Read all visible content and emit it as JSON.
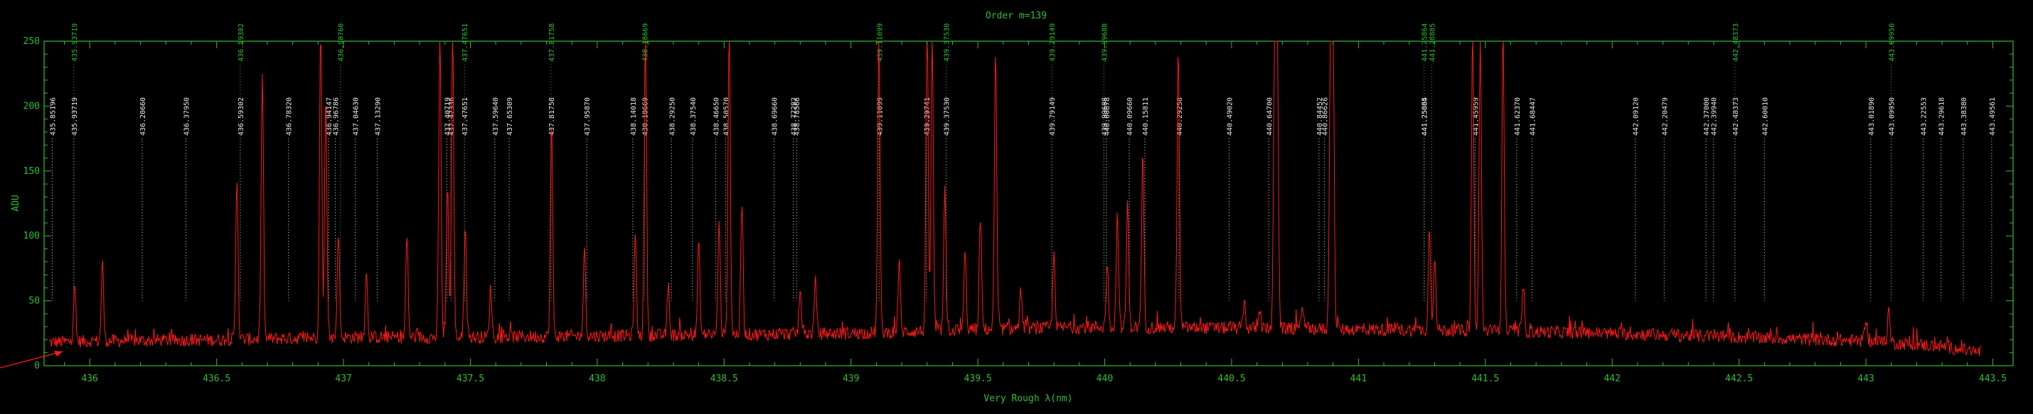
{
  "chart_data": {
    "type": "line",
    "title": "Order m=139",
    "xlabel": "Very Rough λ(nm)",
    "ylabel": "ADU",
    "xlim": [
      435.82,
      443.58
    ],
    "ylim": [
      0,
      250
    ],
    "x_ticks": [
      436,
      436.5,
      437,
      437.5,
      438,
      438.5,
      439,
      439.5,
      440,
      440.5,
      441,
      441.5,
      442,
      442.5,
      443,
      443.5
    ],
    "x_tick_labels": [
      "436",
      "436.5",
      "437",
      "437.5",
      "438",
      "438.5",
      "439",
      "439.5",
      "440",
      "440.5",
      "441",
      "441.5",
      "442",
      "442.5",
      "443",
      "443.5"
    ],
    "y_ticks": [
      0,
      50,
      100,
      150,
      200,
      250
    ],
    "y_tick_labels": [
      "0",
      "50",
      "100",
      "150",
      "200",
      "250"
    ],
    "grid": false,
    "frame_color": "#2fbf2f",
    "spectrum_color": "#ff1a1a",
    "text_color": "#2fbf2f",
    "white_label_color": "#e8e8e8",
    "baseline": {
      "x": [
        435.82,
        436.0,
        436.5,
        437.0,
        437.5,
        438.0,
        438.5,
        439.0,
        439.5,
        440.0,
        440.5,
        441.0,
        441.5,
        442.0,
        442.5,
        443.0,
        443.3,
        443.45
      ],
      "y": [
        18,
        19,
        20,
        22,
        22,
        23,
        24,
        25,
        28,
        30,
        29,
        28,
        27,
        25,
        22,
        19,
        15,
        10
      ]
    },
    "peaks": {
      "x": [
        435.94,
        436.05,
        436.58,
        436.68,
        436.91,
        436.93,
        436.98,
        437.09,
        437.25,
        437.38,
        437.41,
        437.43,
        437.48,
        437.58,
        437.82,
        437.95,
        438.15,
        438.19,
        438.28,
        438.4,
        438.48,
        438.52,
        438.57,
        438.8,
        438.86,
        439.11,
        439.19,
        439.3,
        439.32,
        439.37,
        439.45,
        439.51,
        439.57,
        439.67,
        439.8,
        440.01,
        440.05,
        440.09,
        440.15,
        440.29,
        440.55,
        440.61,
        440.67,
        440.68,
        440.78,
        440.89,
        440.9,
        441.28,
        441.3,
        441.45,
        441.48,
        441.57,
        441.65,
        443.0,
        443.09,
        443.46
      ],
      "y": [
        62,
        80,
        145,
        225,
        260,
        210,
        105,
        72,
        100,
        260,
        140,
        260,
        110,
        60,
        188,
        90,
        100,
        260,
        60,
        95,
        108,
        260,
        125,
        58,
        65,
        255,
        80,
        260,
        255,
        135,
        88,
        115,
        240,
        58,
        87,
        80,
        118,
        125,
        163,
        242,
        50,
        45,
        260,
        255,
        48,
        255,
        250,
        107,
        85,
        260,
        255,
        260,
        60,
        38,
        43,
        48
      ]
    },
    "line_markers": [
      {
        "x": 435.85196,
        "label": "435.85196",
        "color": "white",
        "top": 175,
        "bottom": 50
      },
      {
        "x": 435.93719,
        "label": "435.93719",
        "color": "white",
        "top": 175,
        "bottom": 50
      },
      {
        "x": 435.93719,
        "label": "435.93719",
        "color": "green",
        "top": 232,
        "bottom": 50
      },
      {
        "x": 436.2066,
        "label": "436.20660",
        "color": "white",
        "top": 175,
        "bottom": 50
      },
      {
        "x": 436.3795,
        "label": "436.37950",
        "color": "white",
        "top": 175,
        "bottom": 50
      },
      {
        "x": 436.59302,
        "label": "436.59302",
        "color": "white",
        "top": 175,
        "bottom": 50
      },
      {
        "x": 436.59302,
        "label": "436.59302",
        "color": "green",
        "top": 232,
        "bottom": 50
      },
      {
        "x": 436.7832,
        "label": "436.78320",
        "color": "white",
        "top": 175,
        "bottom": 50
      },
      {
        "x": 436.94147,
        "label": "436.94147",
        "color": "white",
        "top": 175,
        "bottom": 50
      },
      {
        "x": 436.96786,
        "label": "436.96786",
        "color": "white",
        "top": 175,
        "bottom": 50
      },
      {
        "x": 436.9876,
        "label": "436.98760",
        "color": "green",
        "top": 232,
        "bottom": 50
      },
      {
        "x": 437.0463,
        "label": "437.04630",
        "color": "white",
        "top": 175,
        "bottom": 50
      },
      {
        "x": 437.1329,
        "label": "437.13290",
        "color": "white",
        "top": 175,
        "bottom": 50
      },
      {
        "x": 437.40719,
        "label": "437.40719",
        "color": "white",
        "top": 175,
        "bottom": 50
      },
      {
        "x": 437.42336,
        "label": "437.42336",
        "color": "white",
        "top": 175,
        "bottom": 50
      },
      {
        "x": 437.47651,
        "label": "437.47651",
        "color": "white",
        "top": 175,
        "bottom": 50
      },
      {
        "x": 437.47651,
        "label": "437.47651",
        "color": "green",
        "top": 232,
        "bottom": 50
      },
      {
        "x": 437.5964,
        "label": "437.59640",
        "color": "white",
        "top": 175,
        "bottom": 50
      },
      {
        "x": 437.65309,
        "label": "437.65309",
        "color": "white",
        "top": 175,
        "bottom": 50
      },
      {
        "x": 437.81758,
        "label": "437.81758",
        "color": "white",
        "top": 175,
        "bottom": 50
      },
      {
        "x": 437.81758,
        "label": "437.81758",
        "color": "green",
        "top": 232,
        "bottom": 50
      },
      {
        "x": 437.9587,
        "label": "437.95870",
        "color": "white",
        "top": 175,
        "bottom": 50
      },
      {
        "x": 438.14018,
        "label": "438.14018",
        "color": "white",
        "top": 175,
        "bottom": 50
      },
      {
        "x": 438.18669,
        "label": "438.18669",
        "color": "white",
        "top": 175,
        "bottom": 50
      },
      {
        "x": 438.18669,
        "label": "438.18669",
        "color": "green",
        "top": 232,
        "bottom": 50
      },
      {
        "x": 438.2925,
        "label": "438.29250",
        "color": "white",
        "top": 175,
        "bottom": 50
      },
      {
        "x": 438.3754,
        "label": "438.37540",
        "color": "white",
        "top": 175,
        "bottom": 50
      },
      {
        "x": 438.4665,
        "label": "438.46650",
        "color": "white",
        "top": 175,
        "bottom": 50
      },
      {
        "x": 438.5057,
        "label": "438.50570",
        "color": "white",
        "top": 175,
        "bottom": 50
      },
      {
        "x": 438.6966,
        "label": "438.69660",
        "color": "white",
        "top": 175,
        "bottom": 50
      },
      {
        "x": 438.77282,
        "label": "438.77282",
        "color": "white",
        "top": 175,
        "bottom": 50
      },
      {
        "x": 438.78566,
        "label": "438.78566",
        "color": "white",
        "top": 175,
        "bottom": 50
      },
      {
        "x": 439.11099,
        "label": "439.11099",
        "color": "white",
        "top": 175,
        "bottom": 50
      },
      {
        "x": 439.11099,
        "label": "439.11099",
        "color": "green",
        "top": 232,
        "bottom": 50
      },
      {
        "x": 439.29741,
        "label": "439.29741",
        "color": "white",
        "top": 175,
        "bottom": 50
      },
      {
        "x": 439.3753,
        "label": "439.37530",
        "color": "white",
        "top": 175,
        "bottom": 50
      },
      {
        "x": 439.3753,
        "label": "439.37530",
        "color": "green",
        "top": 232,
        "bottom": 50
      },
      {
        "x": 439.79149,
        "label": "439.79149",
        "color": "white",
        "top": 175,
        "bottom": 50
      },
      {
        "x": 439.79149,
        "label": "439.79149",
        "color": "green",
        "top": 232,
        "bottom": 50
      },
      {
        "x": 439.99688,
        "label": "439.99688",
        "color": "white",
        "top": 175,
        "bottom": 50
      },
      {
        "x": 440.00678,
        "label": "440.00678",
        "color": "white",
        "top": 175,
        "bottom": 50
      },
      {
        "x": 439.99688,
        "label": "439.99688",
        "color": "green",
        "top": 232,
        "bottom": 50
      },
      {
        "x": 440.0966,
        "label": "440.09660",
        "color": "white",
        "top": 175,
        "bottom": 50
      },
      {
        "x": 440.15811,
        "label": "440.15811",
        "color": "white",
        "top": 175,
        "bottom": 50
      },
      {
        "x": 440.29258,
        "label": "440.29258",
        "color": "white",
        "top": 175,
        "bottom": 50
      },
      {
        "x": 440.4902,
        "label": "440.49020",
        "color": "white",
        "top": 175,
        "bottom": 50
      },
      {
        "x": 440.647,
        "label": "440.64700",
        "color": "white",
        "top": 175,
        "bottom": 50
      },
      {
        "x": 440.84452,
        "label": "440.84452",
        "color": "white",
        "top": 175,
        "bottom": 50
      },
      {
        "x": 440.86626,
        "label": "440.86626",
        "color": "white",
        "top": 175,
        "bottom": 50
      },
      {
        "x": 441.25864,
        "label": "441.25864",
        "color": "white",
        "top": 175,
        "bottom": 50
      },
      {
        "x": 441.25885,
        "label": "441.25885",
        "color": "white",
        "top": 175,
        "bottom": 50
      },
      {
        "x": 441.25864,
        "label": "441.25864",
        "color": "green",
        "top": 232,
        "bottom": 50
      },
      {
        "x": 441.28885,
        "label": "441.28885",
        "color": "green",
        "top": 232,
        "bottom": 50
      },
      {
        "x": 441.45959,
        "label": "441.45959",
        "color": "white",
        "top": 175,
        "bottom": 50
      },
      {
        "x": 441.6237,
        "label": "441.62370",
        "color": "white",
        "top": 175,
        "bottom": 50
      },
      {
        "x": 441.68447,
        "label": "441.68447",
        "color": "white",
        "top": 175,
        "bottom": 50
      },
      {
        "x": 442.0912,
        "label": "442.09120",
        "color": "white",
        "top": 175,
        "bottom": 50
      },
      {
        "x": 442.20479,
        "label": "442.20479",
        "color": "white",
        "top": 175,
        "bottom": 50
      },
      {
        "x": 442.37,
        "label": "442.37000",
        "color": "white",
        "top": 175,
        "bottom": 50
      },
      {
        "x": 442.3994,
        "label": "442.39940",
        "color": "white",
        "top": 175,
        "bottom": 50
      },
      {
        "x": 442.48373,
        "label": "442.48373",
        "color": "white",
        "top": 175,
        "bottom": 50
      },
      {
        "x": 442.48373,
        "label": "442.48373",
        "color": "green",
        "top": 232,
        "bottom": 50
      },
      {
        "x": 442.6001,
        "label": "442.60010",
        "color": "white",
        "top": 175,
        "bottom": 50
      },
      {
        "x": 443.0189,
        "label": "443.01890",
        "color": "white",
        "top": 175,
        "bottom": 50
      },
      {
        "x": 443.0995,
        "label": "443.09950",
        "color": "white",
        "top": 175,
        "bottom": 50
      },
      {
        "x": 443.0995,
        "label": "443.09950",
        "color": "green",
        "top": 232,
        "bottom": 50
      },
      {
        "x": 443.22553,
        "label": "443.22553",
        "color": "white",
        "top": 175,
        "bottom": 50
      },
      {
        "x": 443.29618,
        "label": "443.29618",
        "color": "white",
        "top": 175,
        "bottom": 50
      },
      {
        "x": 443.3838,
        "label": "443.38380",
        "color": "white",
        "top": 175,
        "bottom": 50
      },
      {
        "x": 443.49561,
        "label": "443.49561",
        "color": "white",
        "top": 175,
        "bottom": 50
      }
    ]
  }
}
